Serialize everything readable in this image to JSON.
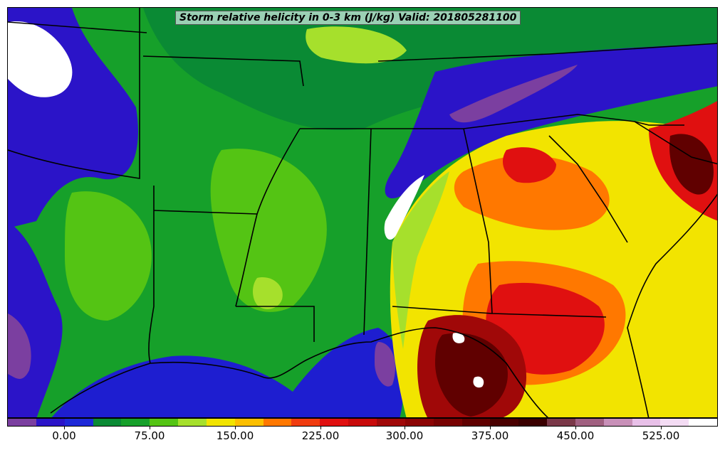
{
  "title": "Storm relative helicity in 0-3 km (J/kg) Valid: 201805281100",
  "colorbar": {
    "colors": [
      "#7b3fa0",
      "#2b14c8",
      "#1e28d8",
      "#0a8a34",
      "#16a02a",
      "#54c414",
      "#a6e02c",
      "#f2e400",
      "#fcbf00",
      "#ff7800",
      "#f03c10",
      "#e01010",
      "#c80a0a",
      "#a00808",
      "#8c0404",
      "#780202",
      "#600000",
      "#4a0000",
      "#3a0000",
      "#7a3848",
      "#a06080",
      "#c890b8",
      "#e8c0e8",
      "#f4dcf4",
      "#ffffff"
    ],
    "tick_labels": [
      "0.00",
      "75.00",
      "150.00",
      "225.00",
      "300.00",
      "375.00",
      "450.00",
      "525.00"
    ]
  },
  "map_colors": {
    "water_low": "#1e1ed0",
    "purple": "#7b3fa0",
    "blue": "#2b14c8",
    "dark_green": "#0a8a34",
    "green": "#16a02a",
    "light_green": "#54c414",
    "lime": "#a6e02c",
    "yellow": "#f2e400",
    "gold": "#fcbf00",
    "orange": "#ff7800",
    "red": "#e01010",
    "dark_red": "#a00808",
    "maroon": "#600000",
    "white": "#ffffff"
  }
}
